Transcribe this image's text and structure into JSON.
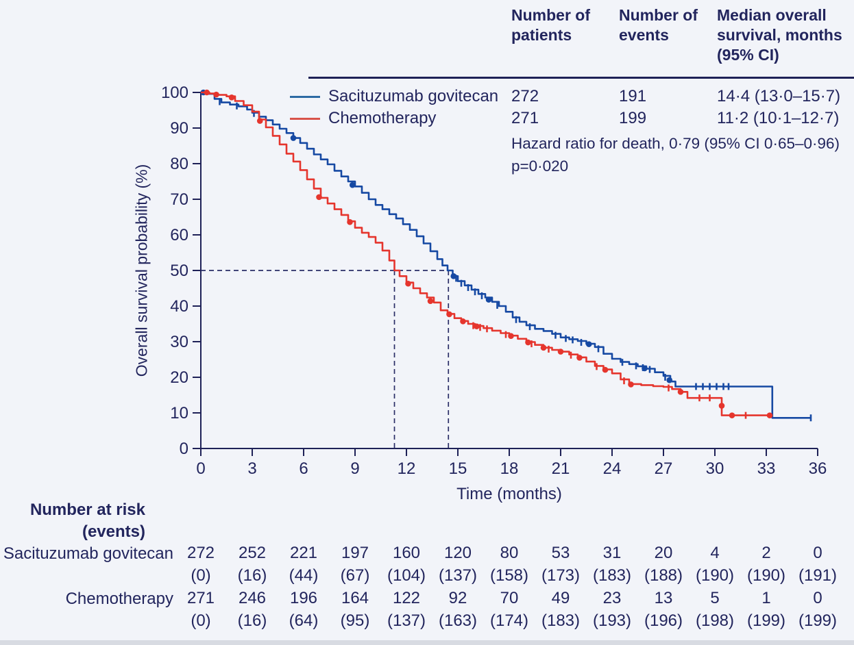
{
  "summary_table": {
    "headers": [
      "Number of patients",
      "Number of events",
      "Median overall survival, months (95% CI)"
    ],
    "rows": [
      {
        "label": "Sacituzumab govitecan",
        "patients": "272",
        "events": "191",
        "median": "14·4 (13·0–15·7)"
      },
      {
        "label": "Chemotherapy",
        "patients": "271",
        "events": "199",
        "median": "11·2 (10·1–12·7)"
      }
    ],
    "hazard_ratio": "Hazard ratio for death, 0·79 (95% CI 0·65–0·96)",
    "p_value": "p=0·020"
  },
  "chart_data": {
    "type": "line",
    "subtype": "kaplan-meier-step",
    "xlabel": "Time (months)",
    "ylabel": "Overall survival probability (%)",
    "xlim": [
      0,
      36
    ],
    "ylim": [
      0,
      100
    ],
    "x_ticks": [
      0,
      3,
      6,
      9,
      12,
      15,
      18,
      21,
      24,
      27,
      30,
      33,
      36
    ],
    "y_ticks": [
      0,
      10,
      20,
      30,
      40,
      50,
      60,
      70,
      80,
      90,
      100
    ],
    "grid": false,
    "legend_position": "top-left-inside",
    "colors": {
      "axis": "#1e2157",
      "text": "#22255d",
      "sg": "#1649a3",
      "chemo": "#e5352d"
    },
    "median_reference_lines": {
      "survival_pct": 50,
      "horizontal_end_month": 14.45,
      "vertical_months": [
        11.3,
        14.45
      ]
    },
    "series": [
      {
        "name": "Sacituzumab govitecan",
        "color": "#1649a3",
        "median_months": 14.4,
        "step_points": [
          [
            0,
            100
          ],
          [
            0.4,
            99.6
          ],
          [
            0.8,
            98.2
          ],
          [
            1.2,
            97.2
          ],
          [
            1.7,
            96.6
          ],
          [
            2.2,
            96.1
          ],
          [
            2.7,
            95.2
          ],
          [
            3,
            94.3
          ],
          [
            3.4,
            93.2
          ],
          [
            3.8,
            92.2
          ],
          [
            4.2,
            91
          ],
          [
            4.6,
            89.8
          ],
          [
            5,
            88.6
          ],
          [
            5.4,
            87.2
          ],
          [
            5.8,
            85.8
          ],
          [
            6.2,
            84.2
          ],
          [
            6.6,
            82.6
          ],
          [
            7,
            81.2
          ],
          [
            7.4,
            79.8
          ],
          [
            7.8,
            78
          ],
          [
            8.2,
            76.4
          ],
          [
            8.6,
            75
          ],
          [
            9,
            73.6
          ],
          [
            9.4,
            71.8
          ],
          [
            9.8,
            70
          ],
          [
            10.2,
            68.4
          ],
          [
            10.6,
            67.2
          ],
          [
            11,
            65.8
          ],
          [
            11.4,
            64.6
          ],
          [
            11.8,
            63
          ],
          [
            12.2,
            61.4
          ],
          [
            12.6,
            59.6
          ],
          [
            13,
            57.6
          ],
          [
            13.4,
            55.4
          ],
          [
            13.8,
            53.2
          ],
          [
            14.1,
            51.4
          ],
          [
            14.4,
            50
          ],
          [
            14.7,
            48.4
          ],
          [
            15,
            47
          ],
          [
            15.4,
            45.8
          ],
          [
            15.8,
            44.6
          ],
          [
            16.2,
            43.4
          ],
          [
            16.6,
            42.4
          ],
          [
            17,
            41.2
          ],
          [
            17.4,
            40
          ],
          [
            17.8,
            38.4
          ],
          [
            18.2,
            36.8
          ],
          [
            18.6,
            35.6
          ],
          [
            19,
            34.6
          ],
          [
            19.5,
            33.6
          ],
          [
            20,
            33
          ],
          [
            20.5,
            32.2
          ],
          [
            21,
            31.2
          ],
          [
            21.5,
            30.7
          ],
          [
            22,
            30.2
          ],
          [
            22.5,
            29.4
          ],
          [
            23,
            28.5
          ],
          [
            23.5,
            26.6
          ],
          [
            24,
            25.2
          ],
          [
            24.5,
            24.3
          ],
          [
            25,
            23.7
          ],
          [
            25.5,
            23.1
          ],
          [
            26,
            22.4
          ],
          [
            26.5,
            21.4
          ],
          [
            27,
            20.4
          ],
          [
            27.4,
            18.8
          ],
          [
            27.7,
            17.4
          ],
          [
            33.3,
            17.4
          ],
          [
            33.35,
            8.6
          ],
          [
            35.6,
            8.6
          ]
        ],
        "censor_ticks": [
          [
            1.1,
            97.4
          ],
          [
            2.1,
            96.2
          ],
          [
            3.1,
            94.1
          ],
          [
            14.9,
            47.8
          ],
          [
            15.2,
            46.4
          ],
          [
            15.6,
            45.2
          ],
          [
            16,
            44
          ],
          [
            16.4,
            42.9
          ],
          [
            17.3,
            40.2
          ],
          [
            18.4,
            36.2
          ],
          [
            19.2,
            34.2
          ],
          [
            20.7,
            31.8
          ],
          [
            21.3,
            30.9
          ],
          [
            21.7,
            30.5
          ],
          [
            22.2,
            29.8
          ],
          [
            23.2,
            28
          ],
          [
            24.6,
            24.2
          ],
          [
            25.4,
            23.2
          ],
          [
            25.8,
            22.7
          ],
          [
            26.2,
            22.2
          ],
          [
            27.1,
            20
          ],
          [
            28.9,
            17.4
          ],
          [
            29.3,
            17.4
          ],
          [
            29.7,
            17.4
          ],
          [
            30.1,
            17.4
          ],
          [
            30.5,
            17.4
          ],
          [
            30.8,
            17.4
          ],
          [
            35.6,
            8.6
          ]
        ],
        "event_dots": [
          [
            0.15,
            100
          ],
          [
            5.4,
            87.2
          ],
          [
            8.85,
            74
          ],
          [
            14.75,
            48.4
          ],
          [
            16.8,
            41.8
          ],
          [
            22.65,
            29.3
          ],
          [
            25.9,
            22.5
          ],
          [
            27.35,
            19.2
          ]
        ]
      },
      {
        "name": "Chemotherapy",
        "color": "#e5352d",
        "median_months": 11.2,
        "step_points": [
          [
            0,
            100
          ],
          [
            0.5,
            99.7
          ],
          [
            1,
            99.3
          ],
          [
            1.5,
            98.9
          ],
          [
            2,
            97.6
          ],
          [
            2.5,
            96.4
          ],
          [
            3,
            94.6
          ],
          [
            3.4,
            92.4
          ],
          [
            3.8,
            90.2
          ],
          [
            4.2,
            87.8
          ],
          [
            4.6,
            85.4
          ],
          [
            5,
            82.8
          ],
          [
            5.4,
            80.6
          ],
          [
            5.8,
            78.2
          ],
          [
            6.2,
            75.6
          ],
          [
            6.6,
            73
          ],
          [
            7,
            70.4
          ],
          [
            7.4,
            68.8
          ],
          [
            7.8,
            67.2
          ],
          [
            8.2,
            65.6
          ],
          [
            8.6,
            63.8
          ],
          [
            9,
            62
          ],
          [
            9.4,
            60.6
          ],
          [
            9.8,
            59.4
          ],
          [
            10.2,
            57.8
          ],
          [
            10.6,
            55.6
          ],
          [
            11,
            52.8
          ],
          [
            11.3,
            50
          ],
          [
            11.6,
            48.4
          ],
          [
            12,
            46.6
          ],
          [
            12.4,
            45
          ],
          [
            12.8,
            43.6
          ],
          [
            13.2,
            42.4
          ],
          [
            13.6,
            41
          ],
          [
            14,
            38.8
          ],
          [
            14.4,
            37.8
          ],
          [
            14.8,
            36.6
          ],
          [
            15.2,
            35.8
          ],
          [
            15.6,
            35
          ],
          [
            16,
            34.4
          ],
          [
            16.5,
            33.8
          ],
          [
            17,
            33.1
          ],
          [
            17.5,
            32.4
          ],
          [
            18,
            31.7
          ],
          [
            18.5,
            30.8
          ],
          [
            19,
            29.9
          ],
          [
            19.5,
            29.1
          ],
          [
            20,
            28.3
          ],
          [
            20.5,
            27.7
          ],
          [
            21,
            27.2
          ],
          [
            21.5,
            26.4
          ],
          [
            22,
            25.6
          ],
          [
            22.5,
            24.4
          ],
          [
            23,
            23.2
          ],
          [
            23.5,
            22.2
          ],
          [
            24,
            21.1
          ],
          [
            24.5,
            19.4
          ],
          [
            25,
            18.1
          ],
          [
            25.7,
            17.8
          ],
          [
            26.4,
            17.5
          ],
          [
            27,
            17.3
          ],
          [
            27.5,
            16.7
          ],
          [
            28,
            15.9
          ],
          [
            28.4,
            14.2
          ],
          [
            30.35,
            14.2
          ],
          [
            30.4,
            9.3
          ],
          [
            33.2,
            9.3
          ]
        ],
        "censor_ticks": [
          [
            15.9,
            34.5
          ],
          [
            16.3,
            34
          ],
          [
            16.7,
            33.6
          ],
          [
            17.8,
            32
          ],
          [
            19.3,
            29.4
          ],
          [
            20.3,
            27.9
          ],
          [
            21.6,
            26.2
          ],
          [
            23.1,
            23
          ],
          [
            24.7,
            19
          ],
          [
            27.3,
            17
          ],
          [
            29.1,
            14.2
          ],
          [
            29.7,
            14.2
          ],
          [
            31.8,
            9.3
          ]
        ],
        "event_dots": [
          [
            0.35,
            100
          ],
          [
            0.9,
            99.4
          ],
          [
            1.8,
            98.6
          ],
          [
            3.45,
            92
          ],
          [
            6.9,
            70.6
          ],
          [
            8.7,
            63.6
          ],
          [
            12.1,
            46.3
          ],
          [
            13.4,
            41.4
          ],
          [
            14.5,
            37.7
          ],
          [
            15.3,
            35.7
          ],
          [
            16.1,
            34.3
          ],
          [
            18.1,
            31.6
          ],
          [
            19.1,
            29.8
          ],
          [
            20,
            28.3
          ],
          [
            21,
            27.2
          ],
          [
            22.1,
            25.5
          ],
          [
            23.6,
            22.1
          ],
          [
            25.1,
            18
          ],
          [
            28,
            15.9
          ],
          [
            30.4,
            12
          ],
          [
            31,
            9.3
          ],
          [
            33.2,
            9.3
          ]
        ]
      }
    ],
    "number_at_risk": {
      "title_line1": "Number at risk",
      "title_line2": "(events)",
      "rows": [
        {
          "label": "Sacituzumab govitecan",
          "n": [
            "272",
            "252",
            "221",
            "197",
            "160",
            "120",
            "80",
            "53",
            "31",
            "20",
            "4",
            "2",
            "0"
          ],
          "events": [
            "(0)",
            "(16)",
            "(44)",
            "(67)",
            "(104)",
            "(137)",
            "(158)",
            "(173)",
            "(183)",
            "(188)",
            "(190)",
            "(190)",
            "(191)"
          ]
        },
        {
          "label": "Chemotherapy",
          "n": [
            "271",
            "246",
            "196",
            "164",
            "122",
            "92",
            "70",
            "49",
            "23",
            "13",
            "5",
            "1",
            "0"
          ],
          "events": [
            "(0)",
            "(16)",
            "(64)",
            "(95)",
            "(137)",
            "(163)",
            "(174)",
            "(183)",
            "(193)",
            "(196)",
            "(198)",
            "(199)",
            "(199)"
          ]
        }
      ]
    }
  }
}
